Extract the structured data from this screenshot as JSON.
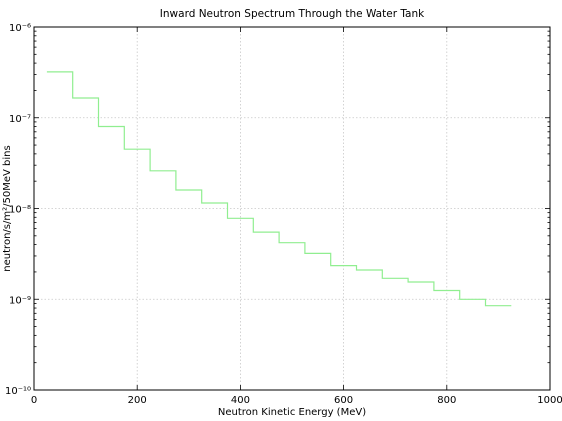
{
  "chart_data": {
    "type": "line",
    "step": true,
    "title": "Inward Neutron Spectrum Through the Water Tank",
    "xlabel": "Neutron Kinetic Energy (MeV)",
    "ylabel": "neutron/s/m²/50MeV bins",
    "xlim": [
      0,
      1000
    ],
    "ylim": [
      1e-10,
      1e-06
    ],
    "yscale": "log",
    "grid": true,
    "x_ticks": [
      "0",
      "200",
      "400",
      "600",
      "800",
      "1000"
    ],
    "y_ticks": [
      "10⁻¹⁰",
      "10⁻⁹",
      "10⁻⁸",
      "10⁻⁷",
      "10⁻⁶"
    ],
    "line_color": "#90ee90",
    "series": [
      {
        "bin_edges": [
          25,
          75,
          125,
          175,
          225,
          275,
          325,
          375,
          425,
          475,
          525,
          575,
          625,
          675,
          725,
          775,
          825,
          875,
          925
        ],
        "values": [
          3.2e-07,
          1.65e-07,
          8e-08,
          4.5e-08,
          2.6e-08,
          1.6e-08,
          1.15e-08,
          7.8e-09,
          5.5e-09,
          4.2e-09,
          3.2e-09,
          2.35e-09,
          2.1e-09,
          1.7e-09,
          1.55e-09,
          1.25e-09,
          1e-09,
          8.5e-10
        ]
      }
    ]
  }
}
